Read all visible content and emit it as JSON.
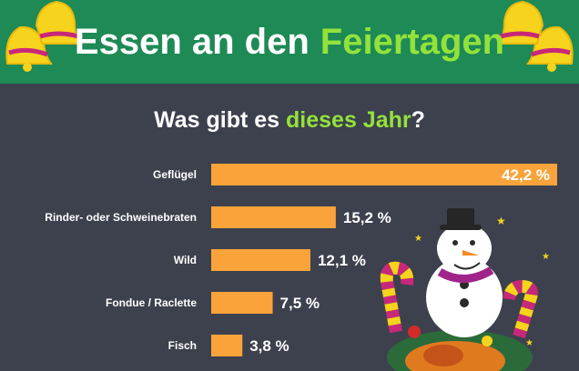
{
  "header": {
    "title_main": "Essen an den",
    "title_accent": "Feiertagen"
  },
  "subtitle": {
    "prefix": "Was gibt es",
    "accent": "dieses Jahr",
    "suffix": "?"
  },
  "colors": {
    "banner": "#1e8a55",
    "accent_green": "#93e23b",
    "background": "#3d414e",
    "bar": "#f9a33a",
    "text": "#ffffff"
  },
  "icons": [
    "bell-icon",
    "snowman-icon",
    "candy-cane-icon",
    "roast-turkey-icon"
  ],
  "chart_data": {
    "type": "bar",
    "orientation": "horizontal",
    "title": "Was gibt es dieses Jahr?",
    "categories": [
      "Geflügel",
      "Rinder- oder Schweinebraten",
      "Wild",
      "Fondue / Raclette",
      "Fisch"
    ],
    "values": [
      42.2,
      15.2,
      12.1,
      7.5,
      3.8
    ],
    "value_labels": [
      "42,2 %",
      "15,2 %",
      "12,1 %",
      "7,5 %",
      "3,8 %"
    ],
    "xlim": [
      0,
      42.2
    ],
    "grid": false,
    "legend": "none"
  }
}
